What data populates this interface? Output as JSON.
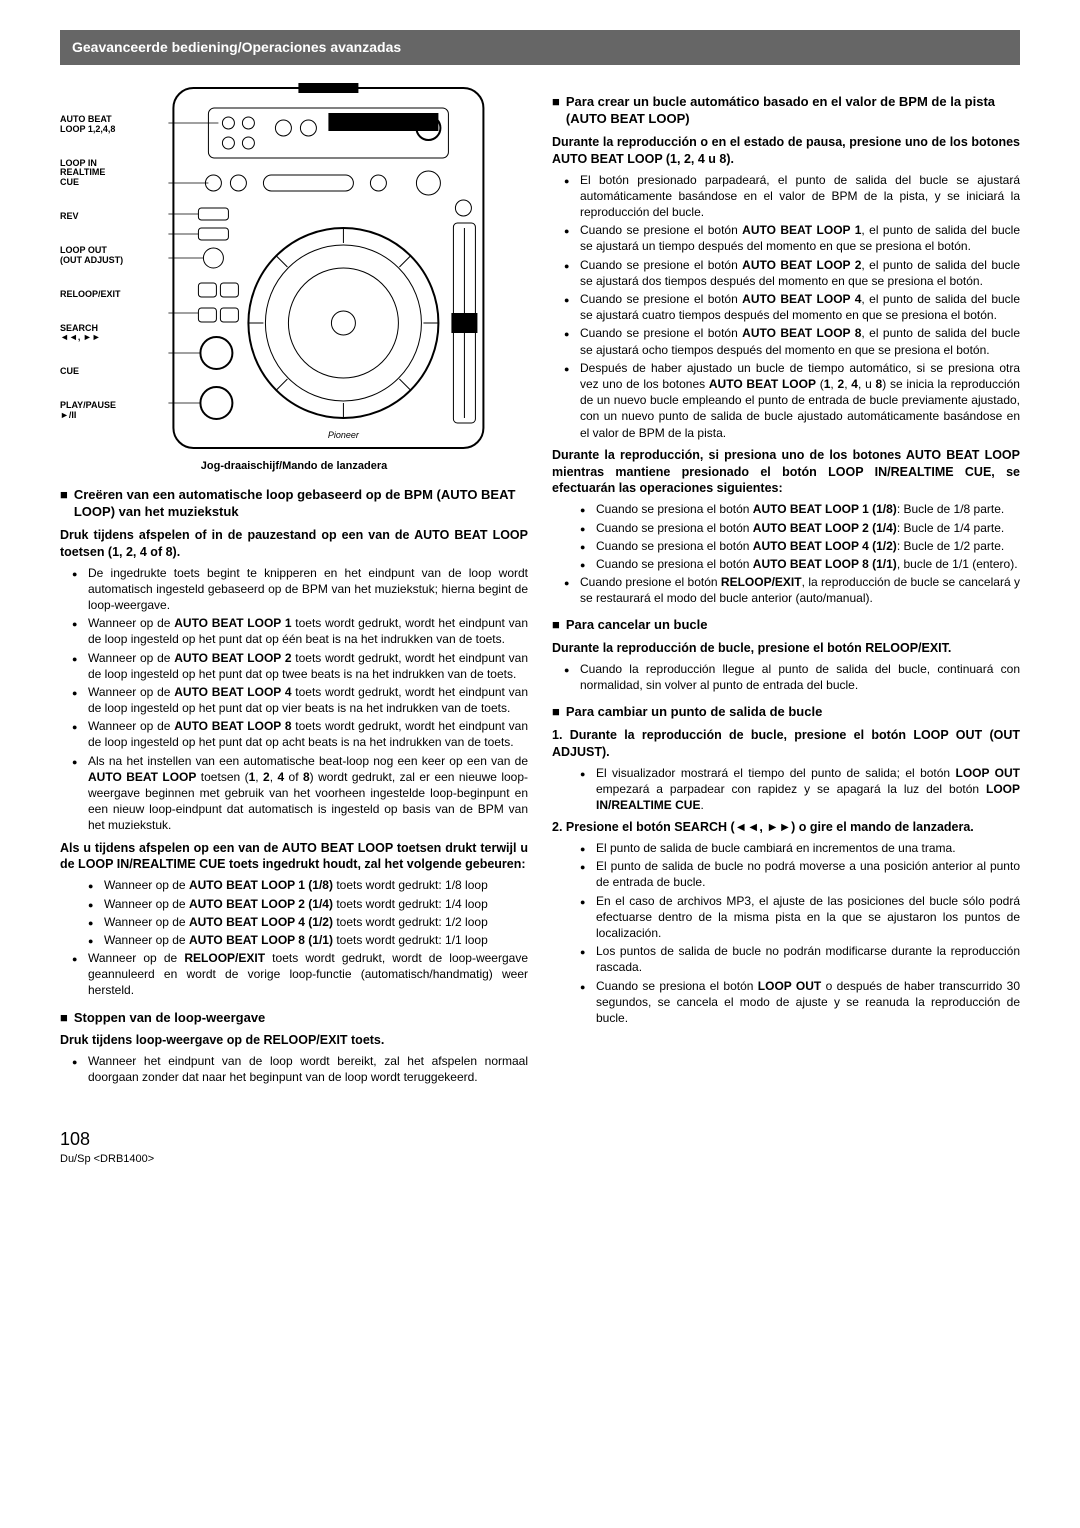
{
  "header": "Geavanceerde bediening/Operaciones avanzadas",
  "diagram_labels": [
    "AUTO BEAT\nLOOP 1,2,4,8",
    "LOOP IN\nREALTIME\nCUE",
    "REV",
    "LOOP OUT\n(OUT ADJUST)",
    "RELOOP/EXIT",
    "SEARCH\n◄◄, ►►",
    "CUE",
    "PLAY/PAUSE\n►/II"
  ],
  "diagram_caption": "Jog-draaischijf/Mando de lanzadera",
  "left": {
    "h1": "Creëren van een automatische loop gebaseerd op de BPM (AUTO BEAT LOOP) van het muziekstuk",
    "sub1": "Druk tijdens afspelen of in de pauzestand op een van de AUTO BEAT LOOP toetsen (1, 2, 4 of 8).",
    "list1": [
      "De ingedrukte toets begint te knipperen en het eindpunt van de loop wordt automatisch ingesteld gebaseerd op de BPM van het muziekstuk; hierna begint de loop-weergave.",
      "Wanneer op de <b>AUTO BEAT LOOP 1</b> toets wordt gedrukt, wordt het eindpunt van de loop ingesteld op het punt dat op één beat is na het indrukken van de toets.",
      "Wanneer op de <b>AUTO BEAT LOOP 2</b> toets wordt gedrukt, wordt het eindpunt van de loop ingesteld op het punt dat op twee beats is na het indrukken van de toets.",
      "Wanneer op de <b>AUTO BEAT LOOP 4</b> toets wordt gedrukt, wordt het eindpunt van de loop ingesteld op het punt dat op vier beats is na het indrukken van de toets.",
      "Wanneer op de <b>AUTO BEAT LOOP 8</b> toets wordt gedrukt, wordt het eindpunt van de loop ingesteld op het punt dat op acht beats is na het indrukken van de toets.",
      "Als na het instellen van een automatische beat-loop nog een keer op een van de <b>AUTO BEAT LOOP</b> toetsen (<b>1</b>, <b>2</b>, <b>4</b> of <b>8</b>) wordt gedrukt, zal er een nieuwe loop-weergave beginnen met gebruik van het voorheen ingestelde loop-beginpunt en een nieuw loop-eindpunt dat automatisch is ingesteld op basis van de BPM van het muziekstuk."
    ],
    "sub2": "Als u tijdens afspelen op een van de AUTO BEAT LOOP toetsen drukt terwijl u de LOOP IN/REALTIME CUE toets ingedrukt houdt, zal het volgende gebeuren:",
    "list2": [
      "Wanneer op de <b>AUTO BEAT LOOP 1 (1/8)</b> toets wordt gedrukt: 1/8 loop",
      "Wanneer op de <b>AUTO BEAT LOOP 2 (1/4)</b> toets wordt gedrukt: 1/4 loop",
      "Wanneer op de <b>AUTO BEAT LOOP 4 (1/2)</b> toets wordt gedrukt: 1/2 loop",
      "Wanneer op de <b>AUTO BEAT LOOP 8 (1/1)</b> toets wordt gedrukt: 1/1 loop"
    ],
    "list2b": "Wanneer op de <b>RELOOP/EXIT</b> toets wordt gedrukt, wordt de loop-weergave geannuleerd en wordt de vorige loop-functie (automatisch/handmatig) weer hersteld.",
    "h2": "Stoppen van de loop-weergave",
    "sub3": "Druk tijdens loop-weergave op de RELOOP/EXIT toets.",
    "list3": [
      "Wanneer het eindpunt van de loop wordt bereikt, zal het afspelen normaal doorgaan zonder dat naar het beginpunt van de loop wordt teruggekeerd."
    ]
  },
  "right": {
    "h1": "Para crear un bucle automático basado en el valor de BPM de la pista (AUTO BEAT LOOP)",
    "sub1": "Durante la reproducción o en el estado de pausa, presione uno de los botones AUTO BEAT LOOP (1, 2, 4 u 8).",
    "list1": [
      "El botón presionado parpadeará, el punto de salida del bucle se ajustará automáticamente basándose en el valor de BPM de la pista, y se iniciará la reproducción del bucle.",
      "Cuando se presione el botón <b>AUTO BEAT LOOP 1</b>, el punto de salida del bucle se ajustará un tiempo después del momento en que se presiona el botón.",
      "Cuando se presione el botón <b>AUTO BEAT LOOP 2</b>, el punto de salida del bucle se ajustará dos tiempos después del momento en que se presiona el botón.",
      "Cuando se presione el botón <b>AUTO BEAT LOOP 4</b>, el punto de salida del bucle se ajustará cuatro tiempos después del momento en que se presiona el botón.",
      "Cuando se presione el botón <b>AUTO BEAT LOOP 8</b>, el punto de salida del bucle se ajustará ocho tiempos después del momento en que se presiona el botón.",
      "Después de haber ajustado un bucle de tiempo automático, si se presiona otra vez uno de los botones <b>AUTO BEAT LOOP</b> (<b>1</b>, <b>2</b>, <b>4</b>, u <b>8</b>) se inicia la reproducción de un nuevo bucle empleando el punto de entrada de bucle previamente ajustado, con un nuevo punto de salida de bucle ajustado automáticamente basándose en el valor de BPM de la pista."
    ],
    "sub2": "Durante la reproducción, si presiona uno de los botones AUTO BEAT LOOP mientras mantiene presionado el botón LOOP IN/REALTIME CUE, se efectuarán las operaciones siguientes:",
    "list2": [
      "Cuando se presiona el botón <b>AUTO BEAT LOOP 1 (1/8)</b>: Bucle de 1/8 parte.",
      "Cuando se presiona el botón <b>AUTO BEAT LOOP 2 (1/4)</b>: Bucle de 1/4 parte.",
      "Cuando se presiona el botón <b>AUTO BEAT LOOP 4 (1/2)</b>: Bucle de 1/2 parte.",
      "Cuando se presiona el botón <b>AUTO BEAT LOOP 8 (1/1)</b>, bucle de 1/1 (entero)."
    ],
    "list2b": "Cuando presione el botón <b>RELOOP/EXIT</b>, la reproducción de bucle se cancelará y se restaurará el modo del bucle anterior (auto/manual).",
    "h2": "Para cancelar un bucle",
    "sub3": "Durante la reproducción de bucle, presione el botón RELOOP/EXIT.",
    "list3": [
      "Cuando la reproducción llegue al punto de salida del bucle, continuará con normalidad, sin volver al punto de entrada del bucle."
    ],
    "h3": "Para cambiar un punto de salida de bucle",
    "step1": "1. Durante la reproducción de bucle, presione el botón LOOP OUT (OUT ADJUST).",
    "list4": [
      "El visualizador mostrará el tiempo del punto de salida; el botón <b>LOOP OUT</b> empezará a parpadear con rapidez y se apagará la luz del botón <b>LOOP IN/REALTIME CUE</b>."
    ],
    "step2": "2. Presione el botón SEARCH (◄◄, ►►) o gire el mando de lanzadera.",
    "list5": [
      "El punto de salida de bucle cambiará en incrementos de una trama.",
      "El punto de salida de bucle no podrá moverse a una posición anterior al punto de entrada de bucle.",
      "En el caso de archivos MP3, el ajuste de las posiciones del bucle sólo podrá efectuarse dentro de la misma pista en la que se ajustaron los puntos de localización.",
      "Los puntos de salida de bucle no podrán modificarse durante la reproducción rascada.",
      "Cuando se presiona el botón <b>LOOP OUT</b> o después de haber transcurrido 30 segundos, se cancela el modo de ajuste y se reanuda la reproducción de bucle."
    ]
  },
  "footer": {
    "page": "108",
    "ref": "Du/Sp <DRB1400>"
  }
}
